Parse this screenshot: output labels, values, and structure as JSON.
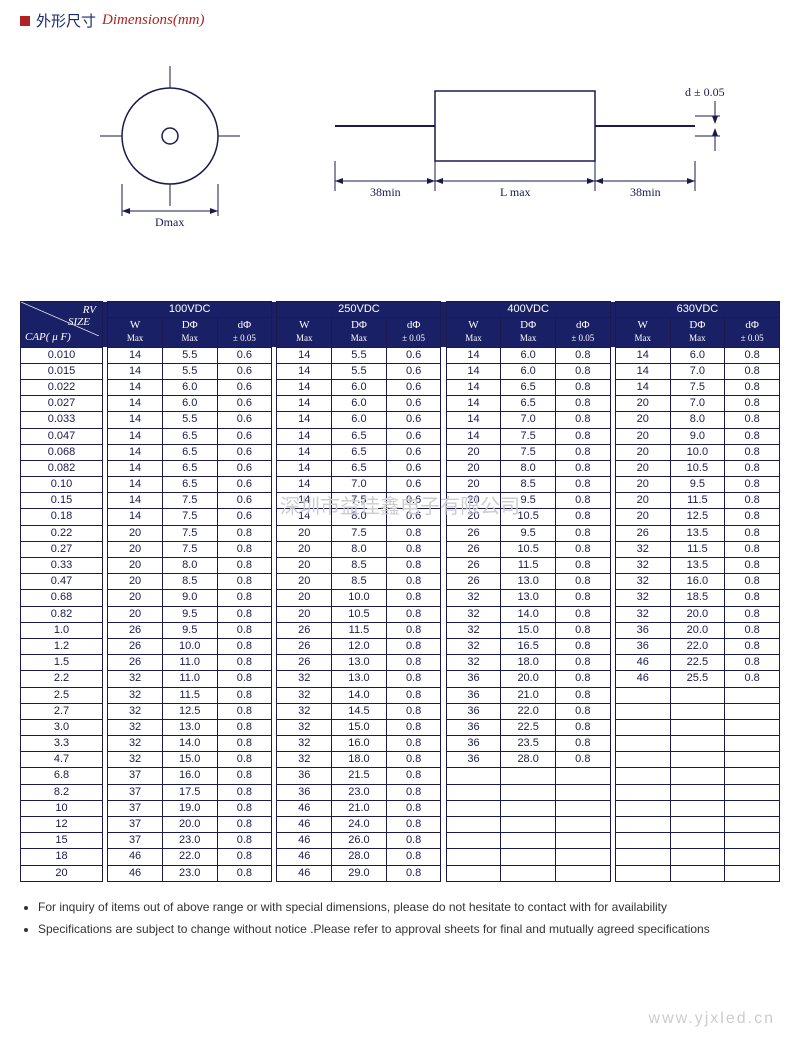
{
  "title": {
    "cn": "外形尺寸",
    "en": "Dimensions(mm)"
  },
  "diagram": {
    "d_label": "Dmax",
    "lead_label": "38min",
    "l_label": "L max",
    "d_tol": "d ± 0.05"
  },
  "header": {
    "corner_rv": "RV",
    "corner_size": "SIZE",
    "corner_cap": "CAP( μ F)",
    "voltages": [
      "100VDC",
      "250VDC",
      "400VDC",
      "630VDC"
    ],
    "sub": {
      "w": "W",
      "w2": "Max",
      "d": "DΦ",
      "d2": "Max",
      "dd": "dΦ",
      "dd2": "± 0.05"
    }
  },
  "caps": [
    "0.010",
    "0.015",
    "0.022",
    "0.027",
    "0.033",
    "0.047",
    "0.068",
    "0.082",
    "0.10",
    "0.15",
    "0.18",
    "0.22",
    "0.27",
    "0.33",
    "0.47",
    "0.68",
    "0.82",
    "1.0",
    "1.2",
    "1.5",
    "2.2",
    "2.5",
    "2.7",
    "3.0",
    "3.3",
    "4.7",
    "6.8",
    "8.2",
    "10",
    "12",
    "15",
    "18",
    "20"
  ],
  "data": {
    "100VDC": [
      [
        "14",
        "5.5",
        "0.6"
      ],
      [
        "14",
        "5.5",
        "0.6"
      ],
      [
        "14",
        "6.0",
        "0.6"
      ],
      [
        "14",
        "6.0",
        "0.6"
      ],
      [
        "14",
        "5.5",
        "0.6"
      ],
      [
        "14",
        "6.5",
        "0.6"
      ],
      [
        "14",
        "6.5",
        "0.6"
      ],
      [
        "14",
        "6.5",
        "0.6"
      ],
      [
        "14",
        "6.5",
        "0.6"
      ],
      [
        "14",
        "7.5",
        "0.6"
      ],
      [
        "14",
        "7.5",
        "0.6"
      ],
      [
        "20",
        "7.5",
        "0.8"
      ],
      [
        "20",
        "7.5",
        "0.8"
      ],
      [
        "20",
        "8.0",
        "0.8"
      ],
      [
        "20",
        "8.5",
        "0.8"
      ],
      [
        "20",
        "9.0",
        "0.8"
      ],
      [
        "20",
        "9.5",
        "0.8"
      ],
      [
        "26",
        "9.5",
        "0.8"
      ],
      [
        "26",
        "10.0",
        "0.8"
      ],
      [
        "26",
        "11.0",
        "0.8"
      ],
      [
        "32",
        "11.0",
        "0.8"
      ],
      [
        "32",
        "11.5",
        "0.8"
      ],
      [
        "32",
        "12.5",
        "0.8"
      ],
      [
        "32",
        "13.0",
        "0.8"
      ],
      [
        "32",
        "14.0",
        "0.8"
      ],
      [
        "32",
        "15.0",
        "0.8"
      ],
      [
        "37",
        "16.0",
        "0.8"
      ],
      [
        "37",
        "17.5",
        "0.8"
      ],
      [
        "37",
        "19.0",
        "0.8"
      ],
      [
        "37",
        "20.0",
        "0.8"
      ],
      [
        "37",
        "23.0",
        "0.8"
      ],
      [
        "46",
        "22.0",
        "0.8"
      ],
      [
        "46",
        "23.0",
        "0.8"
      ]
    ],
    "250VDC": [
      [
        "14",
        "5.5",
        "0.6"
      ],
      [
        "14",
        "5.5",
        "0.6"
      ],
      [
        "14",
        "6.0",
        "0.6"
      ],
      [
        "14",
        "6.0",
        "0.6"
      ],
      [
        "14",
        "6.0",
        "0.6"
      ],
      [
        "14",
        "6.5",
        "0.6"
      ],
      [
        "14",
        "6.5",
        "0.6"
      ],
      [
        "14",
        "6.5",
        "0.6"
      ],
      [
        "14",
        "7.0",
        "0.6"
      ],
      [
        "14",
        "7.5",
        "0.6"
      ],
      [
        "14",
        "8.0",
        "0.6"
      ],
      [
        "20",
        "7.5",
        "0.8"
      ],
      [
        "20",
        "8.0",
        "0.8"
      ],
      [
        "20",
        "8.5",
        "0.8"
      ],
      [
        "20",
        "8.5",
        "0.8"
      ],
      [
        "20",
        "10.0",
        "0.8"
      ],
      [
        "20",
        "10.5",
        "0.8"
      ],
      [
        "26",
        "11.5",
        "0.8"
      ],
      [
        "26",
        "12.0",
        "0.8"
      ],
      [
        "26",
        "13.0",
        "0.8"
      ],
      [
        "32",
        "13.0",
        "0.8"
      ],
      [
        "32",
        "14.0",
        "0.8"
      ],
      [
        "32",
        "14.5",
        "0.8"
      ],
      [
        "32",
        "15.0",
        "0.8"
      ],
      [
        "32",
        "16.0",
        "0.8"
      ],
      [
        "32",
        "18.0",
        "0.8"
      ],
      [
        "36",
        "21.5",
        "0.8"
      ],
      [
        "36",
        "23.0",
        "0.8"
      ],
      [
        "46",
        "21.0",
        "0.8"
      ],
      [
        "46",
        "24.0",
        "0.8"
      ],
      [
        "46",
        "26.0",
        "0.8"
      ],
      [
        "46",
        "28.0",
        "0.8"
      ],
      [
        "46",
        "29.0",
        "0.8"
      ]
    ],
    "400VDC": [
      [
        "14",
        "6.0",
        "0.8"
      ],
      [
        "14",
        "6.0",
        "0.8"
      ],
      [
        "14",
        "6.5",
        "0.8"
      ],
      [
        "14",
        "6.5",
        "0.8"
      ],
      [
        "14",
        "7.0",
        "0.8"
      ],
      [
        "14",
        "7.5",
        "0.8"
      ],
      [
        "20",
        "7.5",
        "0.8"
      ],
      [
        "20",
        "8.0",
        "0.8"
      ],
      [
        "20",
        "8.5",
        "0.8"
      ],
      [
        "20",
        "9.5",
        "0.8"
      ],
      [
        "20",
        "10.5",
        "0.8"
      ],
      [
        "26",
        "9.5",
        "0.8"
      ],
      [
        "26",
        "10.5",
        "0.8"
      ],
      [
        "26",
        "11.5",
        "0.8"
      ],
      [
        "26",
        "13.0",
        "0.8"
      ],
      [
        "32",
        "13.0",
        "0.8"
      ],
      [
        "32",
        "14.0",
        "0.8"
      ],
      [
        "32",
        "15.0",
        "0.8"
      ],
      [
        "32",
        "16.5",
        "0.8"
      ],
      [
        "32",
        "18.0",
        "0.8"
      ],
      [
        "36",
        "20.0",
        "0.8"
      ],
      [
        "36",
        "21.0",
        "0.8"
      ],
      [
        "36",
        "22.0",
        "0.8"
      ],
      [
        "36",
        "22.5",
        "0.8"
      ],
      [
        "36",
        "23.5",
        "0.8"
      ],
      [
        "36",
        "28.0",
        "0.8"
      ],
      [
        "",
        "",
        ""
      ],
      [
        "",
        "",
        ""
      ],
      [
        "",
        "",
        ""
      ],
      [
        "",
        "",
        ""
      ],
      [
        "",
        "",
        ""
      ],
      [
        "",
        "",
        ""
      ],
      [
        "",
        "",
        ""
      ]
    ],
    "630VDC": [
      [
        "14",
        "6.0",
        "0.8"
      ],
      [
        "14",
        "7.0",
        "0.8"
      ],
      [
        "14",
        "7.5",
        "0.8"
      ],
      [
        "20",
        "7.0",
        "0.8"
      ],
      [
        "20",
        "8.0",
        "0.8"
      ],
      [
        "20",
        "9.0",
        "0.8"
      ],
      [
        "20",
        "10.0",
        "0.8"
      ],
      [
        "20",
        "10.5",
        "0.8"
      ],
      [
        "20",
        "9.5",
        "0.8"
      ],
      [
        "20",
        "11.5",
        "0.8"
      ],
      [
        "20",
        "12.5",
        "0.8"
      ],
      [
        "26",
        "13.5",
        "0.8"
      ],
      [
        "32",
        "11.5",
        "0.8"
      ],
      [
        "32",
        "13.5",
        "0.8"
      ],
      [
        "32",
        "16.0",
        "0.8"
      ],
      [
        "32",
        "18.5",
        "0.8"
      ],
      [
        "32",
        "20.0",
        "0.8"
      ],
      [
        "36",
        "20.0",
        "0.8"
      ],
      [
        "36",
        "22.0",
        "0.8"
      ],
      [
        "46",
        "22.5",
        "0.8"
      ],
      [
        "46",
        "25.5",
        "0.8"
      ],
      [
        "",
        "",
        ""
      ],
      [
        "",
        "",
        ""
      ],
      [
        "",
        "",
        ""
      ],
      [
        "",
        "",
        ""
      ],
      [
        "",
        "",
        ""
      ],
      [
        "",
        "",
        ""
      ],
      [
        "",
        "",
        ""
      ],
      [
        "",
        "",
        ""
      ],
      [
        "",
        "",
        ""
      ],
      [
        "",
        "",
        ""
      ],
      [
        "",
        "",
        ""
      ],
      [
        "",
        "",
        ""
      ]
    ]
  },
  "watermarks": {
    "wm1": "深圳市益佳鑫电子有限公司",
    "wm2": "www.yjxled.cn"
  },
  "notes": [
    "For  inquiry of items out of above range or with special dimensions, please do not hesitate to contact with for availability",
    "Specifications are subject to change without notice .Please refer to approval sheets for final and mutually agreed specifications"
  ],
  "style": {
    "header_bg": "#1a2066",
    "border": "#1a1a4d",
    "accent": "#b22222"
  }
}
